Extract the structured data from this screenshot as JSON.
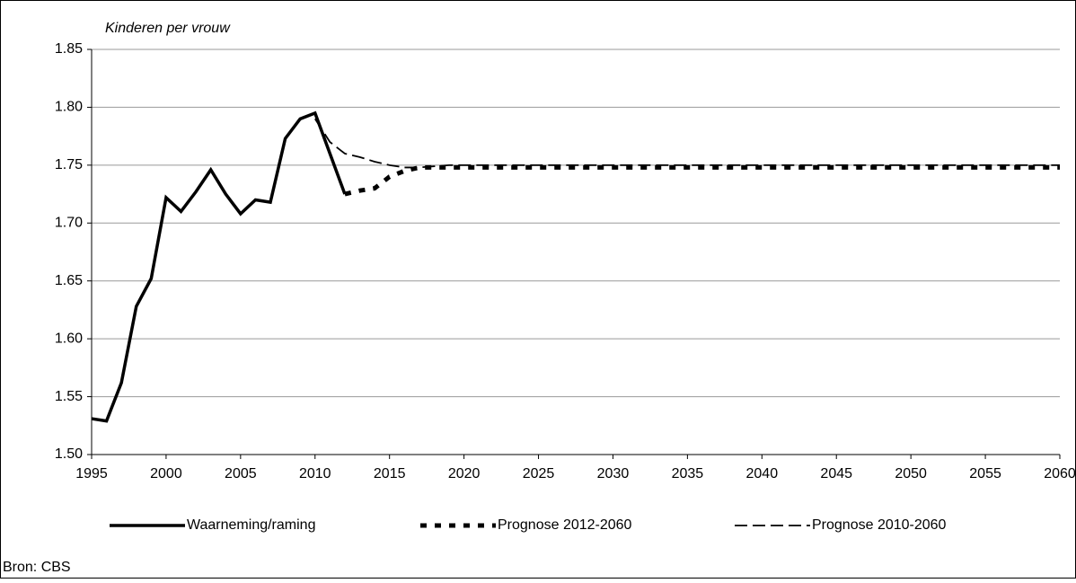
{
  "chart_data": {
    "type": "line",
    "y_axis_label": "Kinderen per vrouw",
    "source": "Bron: CBS",
    "xlim": [
      1995,
      2060
    ],
    "xticks": [
      1995,
      2000,
      2005,
      2010,
      2015,
      2020,
      2025,
      2030,
      2035,
      2040,
      2045,
      2050,
      2055,
      2060
    ],
    "ylim": [
      1.5,
      1.85
    ],
    "yticks": [
      {
        "value": 1.5,
        "label": "1.50"
      },
      {
        "value": 1.55,
        "label": "1.55"
      },
      {
        "value": 1.6,
        "label": "1.60"
      },
      {
        "value": 1.65,
        "label": "1.65"
      },
      {
        "value": 1.7,
        "label": "1.70"
      },
      {
        "value": 1.75,
        "label": "1.75"
      },
      {
        "value": 1.8,
        "label": "1.80"
      },
      {
        "value": 1.85,
        "label": "1.85"
      }
    ],
    "grid": true,
    "legend": "bottom",
    "series": [
      {
        "name": "Waarneming/raming",
        "color": "#000000",
        "line_style": "solid",
        "x": [
          1995,
          1996,
          1997,
          1998,
          1999,
          2000,
          2001,
          2002,
          2003,
          2004,
          2005,
          2006,
          2007,
          2008,
          2009,
          2010,
          2011,
          2012
        ],
        "values": [
          1.531,
          1.529,
          1.562,
          1.628,
          1.652,
          1.722,
          1.71,
          1.727,
          1.746,
          1.725,
          1.708,
          1.72,
          1.718,
          1.773,
          1.79,
          1.795,
          1.76,
          1.725
        ]
      },
      {
        "name": "Prognose 2012-2060",
        "color": "#000000",
        "line_style": "dotted",
        "x": [
          2012,
          2013,
          2014,
          2015,
          2016,
          2017,
          2018,
          2019,
          2020,
          2021,
          2022,
          2023,
          2024,
          2025,
          2026,
          2027,
          2028,
          2029,
          2030,
          2031,
          2032,
          2033,
          2034,
          2035,
          2036,
          2037,
          2038,
          2039,
          2040,
          2041,
          2042,
          2043,
          2044,
          2045,
          2046,
          2047,
          2048,
          2049,
          2050,
          2051,
          2052,
          2053,
          2054,
          2055,
          2056,
          2057,
          2058,
          2059,
          2060
        ],
        "values": [
          1.725,
          1.728,
          1.73,
          1.74,
          1.745,
          1.748,
          1.748,
          1.748,
          1.748,
          1.748,
          1.748,
          1.748,
          1.748,
          1.748,
          1.748,
          1.748,
          1.748,
          1.748,
          1.748,
          1.748,
          1.748,
          1.748,
          1.748,
          1.748,
          1.748,
          1.748,
          1.748,
          1.748,
          1.748,
          1.748,
          1.748,
          1.748,
          1.748,
          1.748,
          1.748,
          1.748,
          1.748,
          1.748,
          1.748,
          1.748,
          1.748,
          1.748,
          1.748,
          1.748,
          1.748,
          1.748,
          1.748,
          1.748,
          1.748
        ]
      },
      {
        "name": "Prognose 2010-2060",
        "color": "#000000",
        "line_style": "dashed",
        "x": [
          2010,
          2011,
          2012,
          2013,
          2014,
          2015,
          2016,
          2017,
          2018,
          2019,
          2020,
          2021,
          2022,
          2023,
          2024,
          2025,
          2026,
          2027,
          2028,
          2029,
          2030,
          2031,
          2032,
          2033,
          2034,
          2035,
          2036,
          2037,
          2038,
          2039,
          2040,
          2041,
          2042,
          2043,
          2044,
          2045,
          2046,
          2047,
          2048,
          2049,
          2050,
          2051,
          2052,
          2053,
          2054,
          2055,
          2056,
          2057,
          2058,
          2059,
          2060
        ],
        "values": [
          1.79,
          1.77,
          1.76,
          1.757,
          1.753,
          1.75,
          1.748,
          1.748,
          1.749,
          1.75,
          1.75,
          1.75,
          1.75,
          1.75,
          1.75,
          1.75,
          1.75,
          1.75,
          1.75,
          1.75,
          1.75,
          1.75,
          1.75,
          1.75,
          1.75,
          1.75,
          1.75,
          1.75,
          1.75,
          1.75,
          1.75,
          1.75,
          1.75,
          1.75,
          1.75,
          1.75,
          1.75,
          1.75,
          1.75,
          1.75,
          1.75,
          1.75,
          1.75,
          1.75,
          1.75,
          1.75,
          1.75,
          1.75,
          1.75,
          1.75,
          1.75
        ]
      }
    ]
  }
}
